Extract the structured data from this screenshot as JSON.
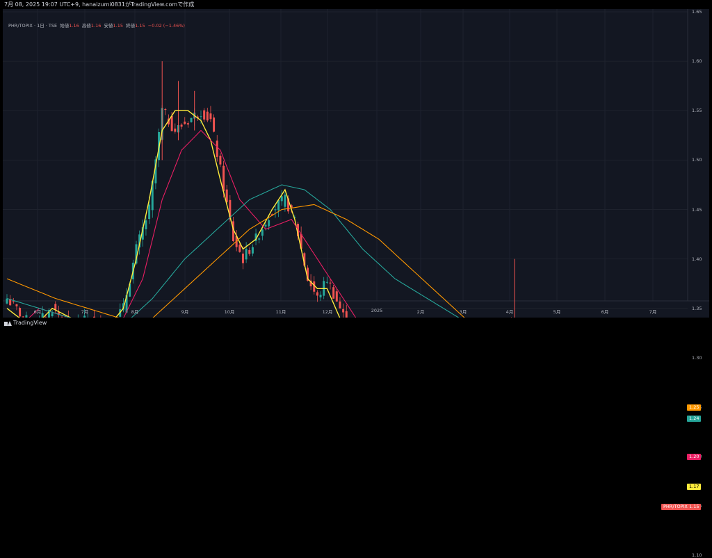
{
  "header": {
    "timestamp": "7月 08, 2025 19:07 UTC+9",
    "publisher_text": "hanaizumi0831がTradingView.comで作成"
  },
  "legend": {
    "symbol": "PHR/TOPIX · 1日 · TSE",
    "open_label": "始値",
    "open_value": "1.16",
    "high_label": "高値",
    "high_value": "1.16",
    "low_label": "安値",
    "low_value": "1.15",
    "close_label": "終値",
    "close_value": "1.15",
    "change": "−0.02 (−1.46%)"
  },
  "colors": {
    "up": "#26a69a",
    "down": "#ef5350",
    "ma_yellow": "#ffeb3b",
    "ma_pink": "#e91e63",
    "ma_teal": "#26a69a",
    "ma_orange": "#ff9800",
    "price_line": "#ef5350"
  },
  "price_tags": [
    {
      "value": "1.25",
      "color": "#ff9800"
    },
    {
      "value": "1.24",
      "color": "#26a69a"
    },
    {
      "value": "1.20",
      "color": "#e91e63"
    },
    {
      "value": "1.17",
      "color": "#ffeb3b"
    },
    {
      "value": "1.15",
      "color": "#ef5350",
      "label": "PHR/TOPIX"
    }
  ],
  "footer": {
    "brand": "TradingView"
  },
  "chart_data": {
    "type": "candlestick",
    "y_axis": {
      "range": [
        1.07,
        1.65
      ],
      "ticks": [
        "1.65",
        "1.60",
        "1.55",
        "1.50",
        "1.45",
        "1.40",
        "1.35",
        "1.30",
        "1.25",
        "1.20",
        "1.15",
        "1.10"
      ]
    },
    "x_axis": {
      "ticks": [
        "6月",
        "7月",
        "8月",
        "9月",
        "10月",
        "11月",
        "12月",
        "2025",
        "2月",
        "3月",
        "4月",
        "5月",
        "6月",
        "7月"
      ]
    },
    "close_anchors": [
      [
        0,
        1.36
      ],
      [
        8,
        1.33
      ],
      [
        14,
        1.35
      ],
      [
        20,
        1.33
      ],
      [
        26,
        1.34
      ],
      [
        31,
        1.33
      ],
      [
        36,
        1.35
      ],
      [
        40,
        1.41
      ],
      [
        44,
        1.45
      ],
      [
        48,
        1.55
      ],
      [
        52,
        1.53
      ],
      [
        56,
        1.54
      ],
      [
        60,
        1.55
      ],
      [
        63,
        1.54
      ],
      [
        66,
        1.49
      ],
      [
        70,
        1.42
      ],
      [
        73,
        1.4
      ],
      [
        77,
        1.42
      ],
      [
        82,
        1.45
      ],
      [
        86,
        1.46
      ],
      [
        89,
        1.44
      ],
      [
        93,
        1.38
      ],
      [
        96,
        1.36
      ],
      [
        99,
        1.38
      ],
      [
        103,
        1.35
      ],
      [
        107,
        1.32
      ],
      [
        110,
        1.32
      ],
      [
        114,
        1.3
      ],
      [
        118,
        1.29
      ],
      [
        122,
        1.28
      ],
      [
        126,
        1.26
      ],
      [
        130,
        1.23
      ],
      [
        133,
        1.21
      ],
      [
        136,
        1.26
      ],
      [
        140,
        1.25
      ],
      [
        143,
        1.25
      ],
      [
        146,
        1.24
      ],
      [
        150,
        1.27
      ],
      [
        153,
        1.29
      ],
      [
        155,
        1.34
      ],
      [
        158,
        1.3
      ],
      [
        161,
        1.29
      ],
      [
        164,
        1.29
      ],
      [
        167,
        1.3
      ],
      [
        170,
        1.29
      ],
      [
        172,
        1.17
      ],
      [
        175,
        1.2
      ],
      [
        178,
        1.22
      ],
      [
        182,
        1.23
      ],
      [
        186,
        1.22
      ],
      [
        190,
        1.21
      ],
      [
        193,
        1.21
      ],
      [
        196,
        1.19
      ],
      [
        199,
        1.17
      ],
      [
        202,
        1.15
      ]
    ],
    "series": [
      {
        "name": "",
        "color": "#ffeb3b",
        "anchors": [
          [
            0,
            1.35
          ],
          [
            8,
            1.33
          ],
          [
            14,
            1.35
          ],
          [
            20,
            1.34
          ],
          [
            26,
            1.34
          ],
          [
            31,
            1.33
          ],
          [
            36,
            1.35
          ],
          [
            40,
            1.4
          ],
          [
            44,
            1.46
          ],
          [
            48,
            1.53
          ],
          [
            52,
            1.55
          ],
          [
            56,
            1.55
          ],
          [
            60,
            1.54
          ],
          [
            63,
            1.52
          ],
          [
            66,
            1.48
          ],
          [
            70,
            1.43
          ],
          [
            73,
            1.41
          ],
          [
            77,
            1.42
          ],
          [
            82,
            1.45
          ],
          [
            86,
            1.47
          ],
          [
            89,
            1.44
          ],
          [
            93,
            1.38
          ],
          [
            96,
            1.37
          ],
          [
            99,
            1.37
          ],
          [
            103,
            1.34
          ],
          [
            107,
            1.32
          ],
          [
            110,
            1.31
          ],
          [
            114,
            1.3
          ],
          [
            118,
            1.29
          ],
          [
            122,
            1.28
          ],
          [
            126,
            1.26
          ],
          [
            130,
            1.24
          ],
          [
            133,
            1.22
          ],
          [
            136,
            1.24
          ],
          [
            140,
            1.25
          ],
          [
            143,
            1.25
          ],
          [
            146,
            1.24
          ],
          [
            150,
            1.27
          ],
          [
            153,
            1.3
          ],
          [
            155,
            1.33
          ],
          [
            158,
            1.31
          ],
          [
            161,
            1.3
          ],
          [
            164,
            1.3
          ],
          [
            167,
            1.3
          ],
          [
            170,
            1.26
          ],
          [
            172,
            1.2
          ],
          [
            175,
            1.21
          ],
          [
            178,
            1.23
          ],
          [
            182,
            1.23
          ],
          [
            186,
            1.22
          ],
          [
            190,
            1.21
          ],
          [
            193,
            1.21
          ],
          [
            196,
            1.19
          ],
          [
            199,
            1.18
          ],
          [
            202,
            1.17
          ]
        ]
      },
      {
        "name": "",
        "color": "#e91e63",
        "anchors": [
          [
            0,
            1.32
          ],
          [
            10,
            1.35
          ],
          [
            20,
            1.34
          ],
          [
            30,
            1.33
          ],
          [
            36,
            1.34
          ],
          [
            42,
            1.38
          ],
          [
            48,
            1.46
          ],
          [
            54,
            1.51
          ],
          [
            60,
            1.53
          ],
          [
            66,
            1.51
          ],
          [
            72,
            1.46
          ],
          [
            80,
            1.43
          ],
          [
            88,
            1.44
          ],
          [
            94,
            1.41
          ],
          [
            100,
            1.38
          ],
          [
            108,
            1.34
          ],
          [
            116,
            1.31
          ],
          [
            124,
            1.29
          ],
          [
            132,
            1.26
          ],
          [
            140,
            1.25
          ],
          [
            148,
            1.25
          ],
          [
            156,
            1.28
          ],
          [
            164,
            1.29
          ],
          [
            170,
            1.28
          ],
          [
            176,
            1.24
          ],
          [
            184,
            1.23
          ],
          [
            192,
            1.22
          ],
          [
            202,
            1.2
          ]
        ]
      },
      {
        "name": "",
        "color": "#26a69a",
        "anchors": [
          [
            0,
            1.36
          ],
          [
            20,
            1.34
          ],
          [
            35,
            1.33
          ],
          [
            45,
            1.36
          ],
          [
            55,
            1.4
          ],
          [
            65,
            1.43
          ],
          [
            75,
            1.46
          ],
          [
            85,
            1.475
          ],
          [
            92,
            1.47
          ],
          [
            100,
            1.45
          ],
          [
            110,
            1.41
          ],
          [
            120,
            1.38
          ],
          [
            130,
            1.36
          ],
          [
            140,
            1.34
          ],
          [
            150,
            1.32
          ],
          [
            160,
            1.29
          ],
          [
            170,
            1.28
          ],
          [
            180,
            1.27
          ],
          [
            190,
            1.26
          ],
          [
            202,
            1.24
          ]
        ]
      },
      {
        "name": "",
        "color": "#ff9800",
        "anchors": [
          [
            0,
            1.38
          ],
          [
            15,
            1.36
          ],
          [
            25,
            1.35
          ],
          [
            35,
            1.34
          ],
          [
            45,
            1.34
          ],
          [
            55,
            1.37
          ],
          [
            65,
            1.4
          ],
          [
            75,
            1.43
          ],
          [
            85,
            1.45
          ],
          [
            95,
            1.455
          ],
          [
            105,
            1.44
          ],
          [
            115,
            1.42
          ],
          [
            125,
            1.39
          ],
          [
            135,
            1.36
          ],
          [
            145,
            1.33
          ],
          [
            155,
            1.3
          ],
          [
            165,
            1.28
          ],
          [
            175,
            1.27
          ],
          [
            185,
            1.26
          ],
          [
            202,
            1.25
          ]
        ]
      }
    ]
  }
}
